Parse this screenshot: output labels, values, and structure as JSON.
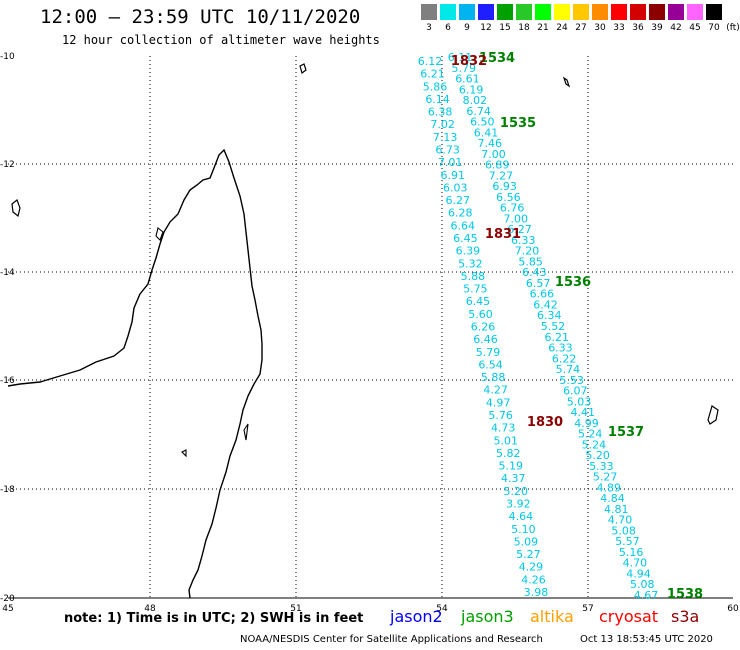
{
  "header": {
    "title": "12:00 – 23:59 UTC 10/11/2020",
    "subtitle": "12 hour collection of altimeter wave heights"
  },
  "color_scale": {
    "labels": [
      "3",
      "6",
      "9",
      "12",
      "15",
      "18",
      "21",
      "24",
      "27",
      "30",
      "33",
      "36",
      "39",
      "42",
      "45",
      "70",
      "(ft)"
    ],
    "colors": [
      "#7f7f7f",
      "#00e8e8",
      "#00b4f0",
      "#1e1eff",
      "#00a000",
      "#28c828",
      "#00ff00",
      "#ffff00",
      "#ffc800",
      "#ff8c00",
      "#ff0000",
      "#d20000",
      "#8c0000",
      "#960096",
      "#ff64ff",
      "#000000"
    ]
  },
  "map": {
    "lon_labels": [
      "45",
      "48",
      "51",
      "54",
      "57",
      "60"
    ],
    "lat_labels": [
      "-10",
      "-12",
      "-14",
      "-16",
      "-18",
      "-20"
    ],
    "track_color": "#00c8e6",
    "time_color": "#008000",
    "s3a_time_color": "#8b0000",
    "tracks": [
      {
        "name": "track-a",
        "values": [
          "6.12",
          "6.21",
          "5.86",
          "6.14",
          "6.38",
          "7.02",
          "7.13",
          "6.73",
          "7.01",
          "6.91",
          "6.03",
          "6.27",
          "6.28",
          "6.64",
          "6.45",
          "6.39",
          "5.32",
          "5.88",
          "5.75",
          "6.45",
          "5.60",
          "6.26",
          "6.46",
          "5.79",
          "6.54",
          "5.88",
          "4.27",
          "4.97",
          "5.76",
          "4.73",
          "5.01",
          "5.82",
          "5.19",
          "4.37",
          "5.20",
          "3.92",
          "4.64",
          "5.10",
          "5.09",
          "5.27",
          "4.29",
          "4.26",
          "3.98"
        ]
      },
      {
        "name": "track-b",
        "values": [
          "6.11",
          "5.79",
          "6.61",
          "6.19",
          "8.02",
          "6.74",
          "6.50",
          "6.41",
          "7.46",
          "7.00",
          "6.89",
          "7.27",
          "6.93",
          "6.56",
          "6.76",
          "7.00",
          "6.27",
          "6.33",
          "7.20",
          "5.85",
          "6.43",
          "6.57",
          "6.66",
          "6.42",
          "6.34",
          "5.52",
          "6.21",
          "6.33",
          "6.22",
          "5.74",
          "5.53",
          "6.07",
          "5.03",
          "4.41",
          "4.99",
          "5.24",
          "5.24",
          "5.20",
          "5.33",
          "5.27",
          "4.89",
          "4.84",
          "4.81",
          "4.70",
          "5.08",
          "5.57",
          "5.16",
          "4.70",
          "4.94",
          "5.08",
          "4.67"
        ]
      }
    ],
    "time_labels": [
      {
        "text": "1534",
        "color": "green"
      },
      {
        "text": "1832",
        "color": "darkred"
      },
      {
        "text": "1535",
        "color": "green"
      },
      {
        "text": "1831",
        "color": "darkred"
      },
      {
        "text": "1536",
        "color": "green"
      },
      {
        "text": "1830",
        "color": "darkred"
      },
      {
        "text": "1537",
        "color": "green"
      },
      {
        "text": "1538",
        "color": "green"
      }
    ]
  },
  "note": "note:  1) Time is in UTC;  2) SWH is in feet",
  "satellites": [
    {
      "label": "jason2",
      "color": "#0000ff"
    },
    {
      "label": "jason3",
      "color": "#00a000"
    },
    {
      "label": "altika",
      "color": "#ffa000"
    },
    {
      "label": "cryosat",
      "color": "#ff0000"
    },
    {
      "label": "s3a",
      "color": "#8b0000"
    }
  ],
  "footer": {
    "credit": "NOAA/NESDIS Center for Satellite Applications and Research",
    "timestamp": "Oct 13 18:53:45 UTC 2020"
  }
}
